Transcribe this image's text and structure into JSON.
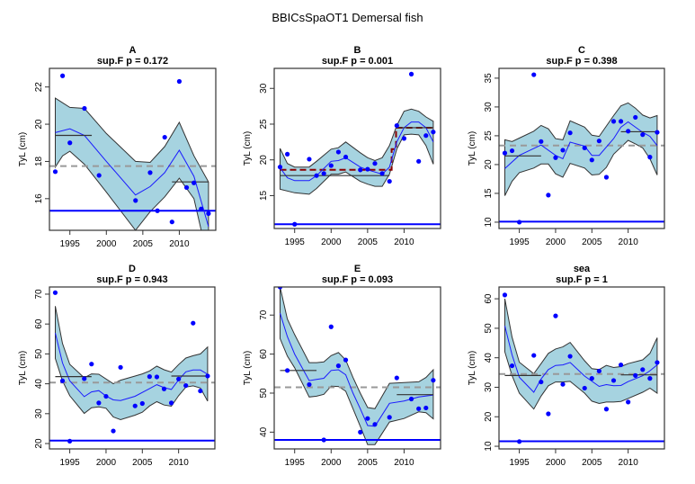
{
  "title": "BBICsSpaOT1 Demersal fish",
  "colors": {
    "band_fill": "#a6d3e0",
    "band_edge": "#333333",
    "smooth": "#1a1aff",
    "points": "#0000ff",
    "mean": "#999999",
    "ref_line": "#0000ff",
    "segment": "#333333",
    "changepoint": "#8b0000"
  },
  "chart_data": [
    {
      "type": "scatter",
      "title": "A",
      "subtitle": "sup.F p = 0.172",
      "xlabel": "",
      "ylabel": "TyL (cm)",
      "xlim": [
        1992.2,
        2015.0
      ],
      "ylim": [
        14.3,
        23.0
      ],
      "xticks": [
        1995,
        2000,
        2005,
        2010
      ],
      "yticks": [
        16,
        18,
        20,
        22
      ],
      "points": {
        "x": [
          1993,
          1994,
          1995,
          1997,
          1999,
          2004,
          2006,
          2007,
          2008,
          2009,
          2010,
          2011,
          2012,
          2013,
          2014
        ],
        "y": [
          17.45,
          22.6,
          19.0,
          20.85,
          17.25,
          15.9,
          17.4,
          15.35,
          19.3,
          14.75,
          22.3,
          16.6,
          16.85,
          15.45,
          15.2
        ]
      },
      "smooth": {
        "x": [
          1993,
          1995,
          1997,
          2000,
          2004,
          2006,
          2008,
          2010,
          2012,
          2014
        ],
        "y": [
          19.55,
          19.75,
          19.4,
          18.0,
          16.2,
          16.65,
          17.4,
          18.6,
          17.2,
          14.5
        ]
      },
      "band_upper": {
        "x": [
          1993,
          1995,
          1997,
          2000,
          2004,
          2006,
          2008,
          2010,
          2012,
          2014
        ],
        "y": [
          21.4,
          20.9,
          20.85,
          19.5,
          18.0,
          17.95,
          18.8,
          20.1,
          18.3,
          16.9
        ]
      },
      "band_lower": {
        "x": [
          1993,
          1994,
          1995,
          1997,
          2000,
          2004,
          2006,
          2008,
          2010,
          2012,
          2013,
          2014
        ],
        "y": [
          17.7,
          18.3,
          18.55,
          17.85,
          16.35,
          14.3,
          15.3,
          16.1,
          17.1,
          16.0,
          14.3,
          14.3
        ]
      },
      "mean": 17.75,
      "ref_line": 15.35,
      "segments": [
        {
          "x0": 1993,
          "x1": 1998,
          "y": 19.4
        },
        {
          "x0": 2009,
          "x1": 2014,
          "y": 16.9
        }
      ],
      "changepoint_line": null
    },
    {
      "type": "scatter",
      "title": "B",
      "subtitle": "sup.F p = 0.001",
      "xlabel": "",
      "ylabel": "TyL (cm)",
      "xlim": [
        1992.2,
        2015.0
      ],
      "ylim": [
        10.4,
        32.8
      ],
      "xticks": [
        1995,
        2000,
        2005,
        2010
      ],
      "yticks": [
        15,
        20,
        25,
        30
      ],
      "points": {
        "x": [
          1993,
          1994,
          1995,
          1997,
          1998,
          1999,
          2000,
          2001,
          2002,
          2004,
          2005,
          2006,
          2007,
          2008,
          2009,
          2010,
          2011,
          2012,
          2013,
          2014
        ],
        "y": [
          19.0,
          20.8,
          11.0,
          20.1,
          17.8,
          18.1,
          19.2,
          21.1,
          20.4,
          18.6,
          18.7,
          19.5,
          18.1,
          17.0,
          24.8,
          23.0,
          32.0,
          19.8,
          23.4,
          23.9
        ]
      },
      "smooth": {
        "x": [
          1993,
          1994,
          1995,
          1997,
          1998,
          2000,
          2001,
          2002,
          2004,
          2005,
          2007,
          2008,
          2009,
          2010,
          2011,
          2012,
          2013,
          2014
        ],
        "y": [
          18.9,
          17.5,
          17.1,
          17.1,
          17.8,
          19.8,
          19.9,
          20.3,
          19.0,
          18.6,
          18.0,
          19.0,
          22.5,
          24.5,
          25.3,
          25.3,
          24.5,
          22.5
        ]
      },
      "band_upper": {
        "x": [
          1993,
          1994,
          1995,
          1997,
          1998,
          2000,
          2001,
          2002,
          2004,
          2005,
          2006,
          2007,
          2008,
          2009,
          2010,
          2011,
          2012,
          2013,
          2014
        ],
        "y": [
          21.6,
          19.5,
          19.0,
          19.0,
          19.8,
          21.5,
          21.7,
          22.5,
          21.0,
          20.3,
          19.9,
          20.3,
          22.0,
          24.8,
          26.8,
          27.1,
          26.8,
          26.0,
          25.4
        ]
      },
      "band_lower": {
        "x": [
          1993,
          1995,
          1997,
          1998,
          2000,
          2001,
          2002,
          2004,
          2005,
          2006,
          2007,
          2008,
          2009,
          2010,
          2011,
          2012,
          2013,
          2014
        ],
        "y": [
          15.9,
          15.4,
          15.2,
          16.0,
          18.0,
          18.0,
          18.3,
          17.0,
          16.6,
          16.3,
          16.3,
          18.0,
          21.5,
          23.5,
          23.6,
          23.5,
          22.0,
          19.4
        ]
      },
      "mean": null,
      "ref_line": 11.0,
      "segments": [
        {
          "x0": 1993,
          "x1": 2008,
          "y": 17.8
        },
        {
          "x0": 2009,
          "x1": 2014,
          "y": 24.5
        }
      ],
      "changepoint_line": {
        "x": [
          1993,
          2008.3,
          2008.3,
          2008.9,
          2008.9,
          2014
        ],
        "y": [
          18.6,
          18.6,
          21.5,
          21.5,
          24.5,
          24.5
        ]
      }
    },
    {
      "type": "scatter",
      "title": "C",
      "subtitle": "sup.F p = 0.398",
      "xlabel": "",
      "ylabel": "TyL (cm)",
      "xlim": [
        1992.2,
        2015.0
      ],
      "ylim": [
        8.9,
        36.7
      ],
      "xticks": [
        1995,
        2000,
        2005,
        2010
      ],
      "yticks": [
        10,
        15,
        20,
        25,
        30,
        35
      ],
      "points": {
        "x": [
          1993,
          1994,
          1995,
          1997,
          1998,
          1999,
          2000,
          2001,
          2002,
          2004,
          2005,
          2006,
          2007,
          2008,
          2009,
          2010,
          2011,
          2012,
          2013,
          2014
        ],
        "y": [
          22.0,
          22.4,
          10.0,
          35.6,
          24.0,
          14.7,
          21.2,
          22.5,
          25.5,
          22.9,
          20.8,
          24.1,
          17.8,
          27.5,
          27.5,
          25.8,
          28.2,
          25.2,
          21.3,
          25.6
        ]
      },
      "smooth": {
        "x": [
          1993,
          1995,
          1998,
          2000,
          2001,
          2002,
          2004,
          2005,
          2006,
          2008,
          2009,
          2010,
          2012,
          2013,
          2014
        ],
        "y": [
          19.3,
          21.6,
          23.4,
          21.6,
          21.0,
          23.9,
          23.2,
          21.6,
          21.6,
          24.5,
          26.5,
          27.4,
          25.6,
          24.9,
          23.3
        ]
      },
      "band_upper": {
        "x": [
          1993,
          1994,
          1995,
          1997,
          1998,
          1999,
          2000,
          2001,
          2002,
          2004,
          2005,
          2006,
          2008,
          2009,
          2010,
          2011,
          2012,
          2013,
          2014
        ],
        "y": [
          24.3,
          24.0,
          24.6,
          25.8,
          26.8,
          26.2,
          24.5,
          24.3,
          27.6,
          26.5,
          25.1,
          24.9,
          28.5,
          30.2,
          30.7,
          29.8,
          28.6,
          28.1,
          28.5
        ]
      },
      "band_lower": {
        "x": [
          1993,
          1994,
          1995,
          1997,
          1998,
          1999,
          2000,
          2001,
          2002,
          2004,
          2005,
          2006,
          2007,
          2008,
          2009,
          2010,
          2011,
          2012,
          2013,
          2014
        ],
        "y": [
          14.6,
          17.1,
          18.6,
          19.4,
          20.1,
          20.1,
          18.4,
          17.8,
          20.2,
          19.4,
          18.2,
          18.3,
          19.5,
          21.8,
          23.0,
          24.2,
          23.6,
          22.9,
          21.0,
          18.2
        ]
      },
      "mean": 23.3,
      "ref_line": 10.1,
      "segments": [
        {
          "x0": 1993,
          "x1": 1998,
          "y": 21.5
        },
        {
          "x0": 2009,
          "x1": 2014,
          "y": 25.7
        }
      ],
      "changepoint_line": null
    },
    {
      "type": "scatter",
      "title": "D",
      "subtitle": "sup.F p = 0.943",
      "xlabel": "",
      "ylabel": "TyL (cm)",
      "xlim": [
        1992.2,
        2015.0
      ],
      "ylim": [
        18.2,
        72.4
      ],
      "xticks": [
        1995,
        2000,
        2005,
        2010
      ],
      "yticks": [
        20,
        30,
        40,
        50,
        60,
        70
      ],
      "points": {
        "x": [
          1993,
          1994,
          1995,
          1997,
          1998,
          1999,
          2000,
          2001,
          2002,
          2004,
          2005,
          2006,
          2007,
          2008,
          2009,
          2010,
          2011,
          2012,
          2013,
          2014
        ],
        "y": [
          70.5,
          41.0,
          20.8,
          41.7,
          46.6,
          33.6,
          35.8,
          24.2,
          45.5,
          32.6,
          33.4,
          42.4,
          42.3,
          38.3,
          33.6,
          41.6,
          39.4,
          60.3,
          37.6,
          42.6
        ]
      },
      "smooth": {
        "x": [
          1993,
          1994,
          1995,
          1997,
          1998,
          1999,
          2000,
          2001,
          2002,
          2004,
          2006,
          2007,
          2008,
          2009,
          2010,
          2011,
          2012,
          2013,
          2014
        ],
        "y": [
          57.0,
          47.0,
          41.0,
          35.7,
          37.3,
          37.7,
          35.9,
          34.6,
          34.4,
          35.8,
          38.4,
          39.7,
          38.7,
          38.1,
          41.3,
          44.0,
          44.6,
          44.6,
          43.2
        ]
      },
      "band_upper": {
        "x": [
          1993,
          1994,
          1995,
          1997,
          1998,
          1999,
          2001,
          2002,
          2004,
          2005,
          2006,
          2007,
          2008,
          2009,
          2010,
          2011,
          2012,
          2013,
          2014
        ],
        "y": [
          66.0,
          53.5,
          46.5,
          42.0,
          43.3,
          43.2,
          40.0,
          41.2,
          42.6,
          43.3,
          44.3,
          45.9,
          44.7,
          43.9,
          46.4,
          48.6,
          49.4,
          50.0,
          52.3
        ]
      },
      "band_lower": {
        "x": [
          1993,
          1994,
          1995,
          1997,
          1998,
          1999,
          2000,
          2001,
          2002,
          2004,
          2005,
          2006,
          2007,
          2008,
          2009,
          2010,
          2011,
          2012,
          2013,
          2014
        ],
        "y": [
          48.5,
          41.0,
          36.0,
          30.1,
          32.0,
          32.3,
          31.8,
          28.9,
          28.0,
          29.5,
          30.5,
          32.6,
          34.0,
          32.9,
          32.5,
          36.0,
          38.9,
          39.3,
          38.6,
          34.2
        ]
      },
      "mean": 40.4,
      "ref_line": 21.0,
      "segments": [
        {
          "x0": 1993,
          "x1": 1998,
          "y": 42.4
        },
        {
          "x0": 2009,
          "x1": 2014,
          "y": 42.6
        }
      ],
      "changepoint_line": null
    },
    {
      "type": "scatter",
      "title": "E",
      "subtitle": "sup.F p = 0.093",
      "xlabel": "",
      "ylabel": "TyL (cm)",
      "xlim": [
        1992.2,
        2015.0
      ],
      "ylim": [
        35.7,
        77.2
      ],
      "xticks": [
        1995,
        2000,
        2005,
        2010
      ],
      "yticks": [
        40,
        50,
        60,
        70
      ],
      "points": {
        "x": [
          1993,
          1994,
          1997,
          1999,
          2000,
          2001,
          2002,
          2004,
          2005,
          2006,
          2008,
          2009,
          2011,
          2012,
          2013,
          2014
        ],
        "y": [
          77.2,
          55.8,
          52.2,
          38.0,
          67.0,
          57.0,
          58.5,
          40.0,
          43.5,
          42.0,
          43.8,
          53.9,
          48.5,
          46.0,
          46.2,
          53.3
        ]
      },
      "smooth": {
        "x": [
          1993,
          1994,
          1995,
          1997,
          1998,
          1999,
          2000,
          2001,
          2002,
          2003,
          2004,
          2005,
          2006,
          2008,
          2010,
          2012,
          2014
        ],
        "y": [
          70.5,
          64.5,
          60.0,
          53.2,
          53.5,
          53.8,
          55.8,
          56.0,
          54.7,
          50.0,
          46.0,
          41.7,
          41.5,
          47.4,
          48.0,
          49.0,
          49.5
        ]
      },
      "band_upper": {
        "x": [
          1993,
          1994,
          1995,
          1997,
          1998,
          1999,
          2000,
          2001,
          2002,
          2003,
          2004,
          2005,
          2006,
          2008,
          2010,
          2012,
          2013,
          2014
        ],
        "y": [
          77.2,
          69.0,
          65.0,
          57.8,
          57.8,
          58.0,
          59.6,
          60.4,
          58.5,
          54.0,
          50.0,
          46.3,
          46.0,
          52.5,
          52.7,
          52.9,
          54.0,
          56.0
        ]
      },
      "band_lower": {
        "x": [
          1993,
          1994,
          1995,
          1997,
          1998,
          1999,
          2000,
          2001,
          2002,
          2003,
          2004,
          2005,
          2006,
          2008,
          2010,
          2012,
          2013,
          2014
        ],
        "y": [
          64.0,
          59.5,
          56.5,
          49.0,
          49.2,
          49.7,
          51.8,
          51.7,
          50.5,
          46.0,
          41.5,
          36.8,
          36.8,
          42.6,
          43.5,
          45.2,
          45.0,
          43.4
        ]
      },
      "mean": 51.5,
      "ref_line": 38.0,
      "segments": [
        {
          "x0": 1993,
          "x1": 1998,
          "y": 55.8
        },
        {
          "x0": 2009,
          "x1": 2014,
          "y": 49.6
        }
      ],
      "changepoint_line": null
    },
    {
      "type": "scatter",
      "title": "sea",
      "subtitle": "sup.F p = 1",
      "xlabel": "",
      "ylabel": "TyL (cm)",
      "xlim": [
        1992.2,
        2015.0
      ],
      "ylim": [
        9.1,
        64.0
      ],
      "xticks": [
        1995,
        2000,
        2005,
        2010
      ],
      "yticks": [
        10,
        20,
        30,
        40,
        50,
        60
      ],
      "points": {
        "x": [
          1993,
          1994,
          1995,
          1997,
          1998,
          1999,
          2000,
          2001,
          2002,
          2004,
          2005,
          2006,
          2007,
          2008,
          2009,
          2010,
          2011,
          2012,
          2013,
          2014
        ],
        "y": [
          61.3,
          37.3,
          11.6,
          40.8,
          31.8,
          21.0,
          54.2,
          31.0,
          40.5,
          29.7,
          33.0,
          35.5,
          22.6,
          32.3,
          37.6,
          25.0,
          34.0,
          36.0,
          33.0,
          38.4
        ]
      },
      "smooth": {
        "x": [
          1993,
          1994,
          1995,
          1997,
          1998,
          1999,
          2000,
          2001,
          2002,
          2004,
          2006,
          2007,
          2008,
          2009,
          2010,
          2012,
          2013,
          2014
        ],
        "y": [
          50.8,
          41.0,
          33.4,
          28.3,
          32.8,
          36.0,
          37.4,
          37.6,
          38.4,
          33.8,
          30.3,
          30.9,
          30.5,
          30.6,
          31.9,
          33.9,
          35.6,
          37.6
        ]
      },
      "band_upper": {
        "x": [
          1993,
          1994,
          1995,
          1997,
          1998,
          1999,
          2000,
          2001,
          2002,
          2004,
          2005,
          2006,
          2007,
          2008,
          2009,
          2010,
          2012,
          2013,
          2014
        ],
        "y": [
          60.0,
          47.0,
          38.5,
          34.6,
          38.0,
          41.5,
          43.0,
          43.7,
          45.2,
          39.0,
          36.3,
          36.0,
          37.4,
          36.7,
          37.0,
          38.0,
          39.3,
          41.5,
          46.8
        ]
      },
      "band_lower": {
        "x": [
          1993,
          1994,
          1995,
          1997,
          1998,
          1999,
          2000,
          2001,
          2002,
          2004,
          2005,
          2006,
          2007,
          2008,
          2009,
          2010,
          2012,
          2013,
          2014
        ],
        "y": [
          42.0,
          34.0,
          28.0,
          22.6,
          27.0,
          30.5,
          31.8,
          31.8,
          32.0,
          28.0,
          25.3,
          24.5,
          25.0,
          25.0,
          25.2,
          26.2,
          28.3,
          29.7,
          28.0
        ]
      },
      "mean": 34.5,
      "ref_line": 11.7,
      "segments": [
        {
          "x0": 1993,
          "x1": 1998,
          "y": 34.0
        },
        {
          "x0": 2009,
          "x1": 2014,
          "y": 34.2
        }
      ],
      "changepoint_line": null
    }
  ]
}
